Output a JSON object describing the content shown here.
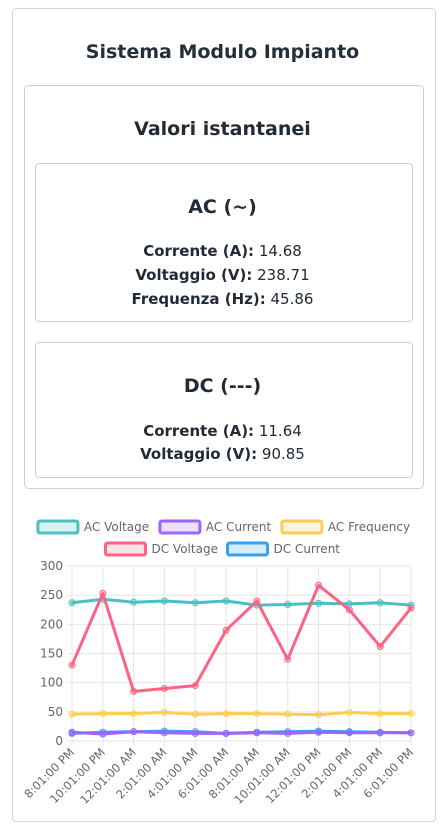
{
  "app_title": "Sistema Modulo Impianto",
  "panel_title": "Valori istantanei",
  "ac": {
    "title": "AC (~)",
    "rows": [
      {
        "label": "Corrente (A):",
        "value": "14.68"
      },
      {
        "label": "Voltaggio (V):",
        "value": "238.71"
      },
      {
        "label": "Frequenza (Hz):",
        "value": "45.86"
      }
    ]
  },
  "dc": {
    "title": "DC (---)",
    "rows": [
      {
        "label": "Corrente (A):",
        "value": "11.64"
      },
      {
        "label": "Voltaggio (V):",
        "value": "90.85"
      }
    ]
  },
  "chart_data": {
    "type": "line",
    "categories": [
      "8:01:00 PM",
      "10:01:00 PM",
      "12:01:00 AM",
      "2:01:00 AM",
      "4:01:00 AM",
      "6:01:00 AM",
      "8:01:00 AM",
      "10:01:00 AM",
      "12:01:00 PM",
      "2:01:00 PM",
      "4:01:00 PM",
      "6:01:00 PM"
    ],
    "ylim": [
      0,
      300
    ],
    "yticks": [
      "0",
      "50",
      "100",
      "150",
      "200",
      "250",
      "300"
    ],
    "grid": true,
    "legend_placement": "top",
    "series": [
      {
        "name": "AC Voltage",
        "color": "#4bc0c0",
        "values": [
          237,
          243,
          238,
          240,
          237,
          240,
          233,
          234,
          236,
          235,
          237,
          233
        ]
      },
      {
        "name": "AC Current",
        "color": "#9966ff",
        "values": [
          15,
          12,
          16,
          14,
          13,
          13,
          14,
          13,
          15,
          14,
          14,
          14
        ]
      },
      {
        "name": "AC Frequency",
        "color": "#ffcd56",
        "values": [
          46,
          47,
          47,
          49,
          46,
          47,
          47,
          46,
          45,
          49,
          47,
          47
        ]
      },
      {
        "name": "DC Voltage",
        "color": "#ff6384",
        "values": [
          130,
          253,
          85,
          90,
          95,
          190,
          240,
          140,
          267,
          225,
          162,
          228
        ]
      },
      {
        "name": "DC Current",
        "color": "#36a2eb",
        "values": [
          13,
          15,
          16,
          17,
          16,
          13,
          15,
          16,
          17,
          16,
          15,
          14
        ]
      }
    ]
  }
}
